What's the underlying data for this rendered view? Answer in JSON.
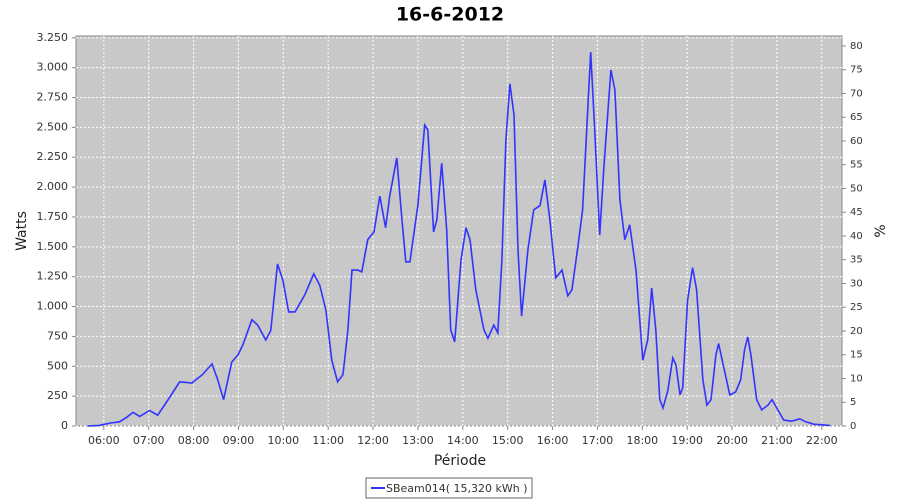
{
  "chart_data": {
    "type": "line",
    "title": "16-6-2012",
    "xlabel": "Période",
    "ylabel": "Watts",
    "y2label": "%",
    "x": [
      5.64,
      5.9,
      6.15,
      6.35,
      6.5,
      6.65,
      6.8,
      7.02,
      7.2,
      7.45,
      7.69,
      7.96,
      8.2,
      8.41,
      8.54,
      8.67,
      8.85,
      8.99,
      9.1,
      9.3,
      9.43,
      9.61,
      9.72,
      9.87,
      9.99,
      10.12,
      10.26,
      10.48,
      10.68,
      10.81,
      10.95,
      11.08,
      11.21,
      11.33,
      11.44,
      11.53,
      11.66,
      11.75,
      11.88,
      12.02,
      12.15,
      12.28,
      12.37,
      12.53,
      12.64,
      12.73,
      12.82,
      13.0,
      13.15,
      13.22,
      13.35,
      13.42,
      13.53,
      13.64,
      13.73,
      13.82,
      13.96,
      14.07,
      14.16,
      14.29,
      14.47,
      14.56,
      14.69,
      14.78,
      14.87,
      14.96,
      15.05,
      15.14,
      15.23,
      15.31,
      15.45,
      15.58,
      15.72,
      15.83,
      15.94,
      16.07,
      16.21,
      16.34,
      16.43,
      16.56,
      16.67,
      16.76,
      16.85,
      16.94,
      17.05,
      17.14,
      17.3,
      17.39,
      17.5,
      17.61,
      17.72,
      17.86,
      18.01,
      18.12,
      18.21,
      18.3,
      18.39,
      18.46,
      18.57,
      18.68,
      18.75,
      18.84,
      18.9,
      19.01,
      19.12,
      19.21,
      19.35,
      19.44,
      19.53,
      19.64,
      19.7,
      19.79,
      19.95,
      20.08,
      20.19,
      20.28,
      20.35,
      20.42,
      20.55,
      20.66,
      20.8,
      20.89,
      21.02,
      21.15,
      21.33,
      21.51,
      21.64,
      21.82,
      22.18
    ],
    "series": [
      {
        "name": "SBeam014( 15,320 kWh )",
        "color": "#3333ff",
        "values": [
          0,
          5,
          25,
          35,
          70,
          115,
          80,
          130,
          90,
          230,
          370,
          360,
          430,
          520,
          385,
          220,
          535,
          595,
          680,
          890,
          845,
          720,
          800,
          1357,
          1220,
          955,
          955,
          1100,
          1275,
          1180,
          970,
          550,
          370,
          430,
          805,
          1305,
          1305,
          1290,
          1560,
          1625,
          1925,
          1660,
          1925,
          2245,
          1740,
          1375,
          1375,
          1850,
          2520,
          2480,
          1625,
          1725,
          2200,
          1640,
          805,
          705,
          1390,
          1660,
          1560,
          1140,
          805,
          735,
          845,
          780,
          1390,
          2395,
          2865,
          2605,
          1475,
          920,
          1475,
          1810,
          1845,
          2060,
          1725,
          1240,
          1305,
          1090,
          1140,
          1490,
          1810,
          2480,
          3130,
          2480,
          1600,
          2145,
          2980,
          2815,
          1895,
          1560,
          1685,
          1305,
          550,
          720,
          1155,
          805,
          220,
          150,
          300,
          570,
          510,
          260,
          320,
          1055,
          1325,
          1140,
          385,
          175,
          220,
          595,
          690,
          535,
          260,
          285,
          385,
          640,
          745,
          595,
          220,
          135,
          175,
          220,
          135,
          50,
          40,
          60,
          35,
          15,
          5
        ]
      }
    ],
    "xlim": [
      5.38,
      22.45
    ],
    "xticks": [
      {
        "value": 6,
        "label": "06:00"
      },
      {
        "value": 7,
        "label": "07:00"
      },
      {
        "value": 8,
        "label": "08:00"
      },
      {
        "value": 9,
        "label": "09:00"
      },
      {
        "value": 10,
        "label": "10:00"
      },
      {
        "value": 11,
        "label": "11:00"
      },
      {
        "value": 12,
        "label": "12:00"
      },
      {
        "value": 13,
        "label": "13:00"
      },
      {
        "value": 14,
        "label": "14:00"
      },
      {
        "value": 15,
        "label": "15:00"
      },
      {
        "value": 16,
        "label": "16:00"
      },
      {
        "value": 17,
        "label": "17:00"
      },
      {
        "value": 18,
        "label": "18:00"
      },
      {
        "value": 19,
        "label": "19:00"
      },
      {
        "value": 20,
        "label": "20:00"
      },
      {
        "value": 21,
        "label": "21:00"
      },
      {
        "value": 22,
        "label": "22:00"
      }
    ],
    "ylim": [
      0,
      3265
    ],
    "yticks": [
      0,
      250,
      500,
      750,
      {
        "value": 1000,
        "label": "1.000"
      },
      {
        "value": 1250,
        "label": "1.250"
      },
      {
        "value": 1500,
        "label": "1.500"
      },
      {
        "value": 1750,
        "label": "1.750"
      },
      {
        "value": 2000,
        "label": "2.000"
      },
      {
        "value": 2250,
        "label": "2.250"
      },
      {
        "value": 2500,
        "label": "2.500"
      },
      {
        "value": 2750,
        "label": "2.750"
      },
      {
        "value": 3000,
        "label": "3.000"
      },
      {
        "value": 3250,
        "label": "3.250"
      }
    ],
    "y2lim": [
      0,
      82.1
    ],
    "y2ticks": [
      0,
      5,
      10,
      15,
      20,
      25,
      30,
      35,
      40,
      45,
      50,
      55,
      60,
      65,
      70,
      75,
      80
    ],
    "grid": true
  }
}
